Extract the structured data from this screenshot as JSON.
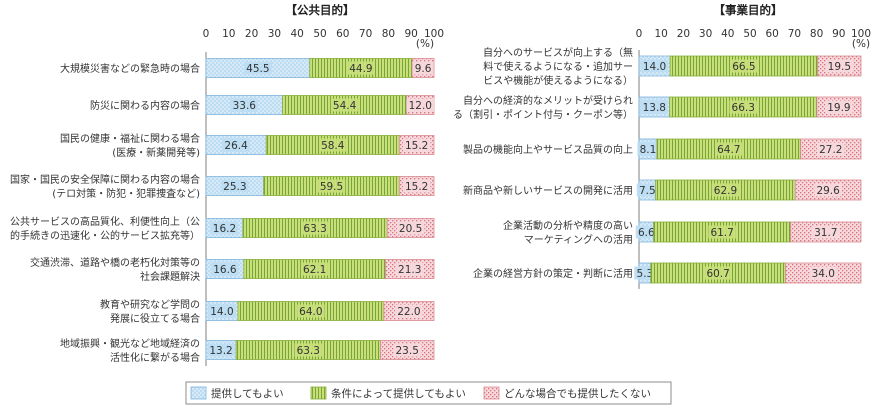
{
  "chart_data": [
    {
      "type": "bar",
      "orientation": "horizontal",
      "stacked": true,
      "title": "【公共目的】",
      "unit": "(%)",
      "xlim": [
        0,
        100
      ],
      "ticks": [
        "0",
        "10",
        "20",
        "30",
        "40",
        "50",
        "60",
        "70",
        "80",
        "90",
        "100"
      ],
      "grid": false,
      "categories": [
        [
          "大規模災害などの緊急時の場合"
        ],
        [
          "防災に関わる内容の場合"
        ],
        [
          "国民の健康・福祉に関わる場合",
          "(医療・新薬開発等)"
        ],
        [
          "国家・国民の安全保障に関わる内容の場合",
          "(テロ対策・防犯・犯罪捜査など)"
        ],
        [
          "公共サービスの高品質化、利便性向上（公",
          "的手続きの迅速化・公的サービス拡充等）"
        ],
        [
          "交通渋滞、道路や橋の老朽化対策等の",
          "社会課題解決"
        ],
        [
          "教育や研究など学問の",
          "発展に役立てる場合"
        ],
        [
          "地域振興・観光など地域経済の",
          "活性化に繋がる場合"
        ]
      ],
      "series": [
        {
          "name": "提供してもよい",
          "values": [
            45.5,
            33.6,
            26.4,
            25.3,
            16.2,
            16.6,
            14.0,
            13.2
          ],
          "labels": [
            "45.5",
            "33.6",
            "26.4",
            "25.3",
            "16.2",
            "16.6",
            "14.0",
            "13.2"
          ]
        },
        {
          "name": "条件によって提供してもよい",
          "values": [
            44.9,
            54.4,
            58.4,
            59.5,
            63.3,
            62.1,
            64.0,
            63.3
          ],
          "labels": [
            "44.9",
            "54.4",
            "58.4",
            "59.5",
            "63.3",
            "62.1",
            "64.0",
            "63.3"
          ]
        },
        {
          "name": "どんな場合でも提供したくない",
          "values": [
            9.6,
            12.0,
            15.2,
            15.2,
            20.5,
            21.3,
            22.0,
            23.5
          ],
          "labels": [
            "9.6",
            "12.0",
            "15.2",
            "15.2",
            "20.5",
            "21.3",
            "22.0",
            "23.5"
          ]
        }
      ]
    },
    {
      "type": "bar",
      "orientation": "horizontal",
      "stacked": true,
      "title": "【事業目的】",
      "unit": "(%)",
      "xlim": [
        0,
        100
      ],
      "ticks": [
        "0",
        "10",
        "20",
        "30",
        "40",
        "50",
        "60",
        "70",
        "80",
        "90",
        "100"
      ],
      "grid": false,
      "categories": [
        [
          "自分へのサービスが向上する（無",
          "料で使えるようになる・追加サー",
          "ビスや機能が使えるようになる）"
        ],
        [
          "自分への経済的なメリットが受けられ",
          "る（割引・ポイント付与・クーポン等）"
        ],
        [
          "製品の機能向上やサービス品質の向上"
        ],
        [
          "新商品や新しいサービスの開発に活用"
        ],
        [
          "企業活動の分析や精度の高い",
          "マーケティングへの活用"
        ],
        [
          "企業の経営方針の策定・判断に活用"
        ]
      ],
      "series": [
        {
          "name": "提供してもよい",
          "values": [
            14.0,
            13.8,
            8.1,
            7.5,
            6.6,
            5.3
          ],
          "labels": [
            "14.0",
            "13.8",
            "8.1",
            "7.5",
            "6.6",
            "5.3"
          ]
        },
        {
          "name": "条件によって提供してもよい",
          "values": [
            66.5,
            66.3,
            64.7,
            62.9,
            61.7,
            60.7
          ],
          "labels": [
            "66.5",
            "66.3",
            "64.7",
            "62.9",
            "61.7",
            "60.7"
          ]
        },
        {
          "name": "どんな場合でも提供したくない",
          "values": [
            19.5,
            19.9,
            27.2,
            29.6,
            31.7,
            34.0
          ],
          "labels": [
            "19.5",
            "19.9",
            "27.2",
            "29.6",
            "31.7",
            "34.0"
          ]
        }
      ]
    }
  ],
  "legend": {
    "position": "bottom-center",
    "items": [
      "提供してもよい",
      "条件によって提供してもよい",
      "どんな場合でも提供したくない"
    ]
  },
  "colors": {
    "series": [
      "#bcdcf3",
      "#c8e07a",
      "#f6d9dc"
    ],
    "strokes": [
      "#7fb4dc",
      "#86ad35",
      "#d98a92"
    ],
    "pattern_dots": [
      "#ffffff",
      "#7aa33a",
      "#d9707c"
    ]
  }
}
